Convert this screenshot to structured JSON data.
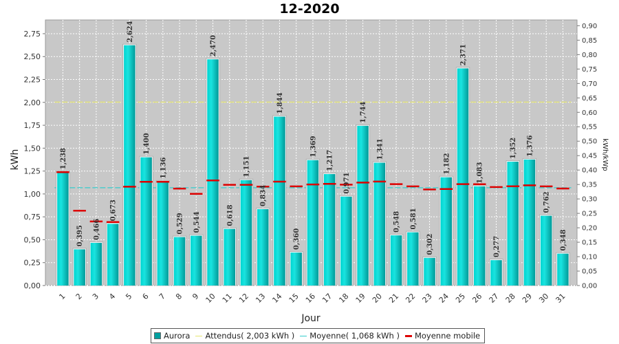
{
  "chart_data": {
    "type": "bar",
    "title": "12-2020",
    "xlabel": "Jour",
    "ylabel": "kWh",
    "y2label": "kWh/kWp",
    "ylim": [
      0,
      2.9
    ],
    "y2lim": [
      0,
      0.92
    ],
    "yticks": [
      "0,00",
      "0,25",
      "0,50",
      "0,75",
      "1,00",
      "1,25",
      "1,50",
      "1,75",
      "2,00",
      "2,25",
      "2,50",
      "2,75"
    ],
    "y2ticks": [
      "0,00",
      "0,05",
      "0,10",
      "0,15",
      "0,20",
      "0,25",
      "0,30",
      "0,35",
      "0,40",
      "0,45",
      "0,50",
      "0,55",
      "0,60",
      "0,65",
      "0,70",
      "0,75",
      "0,80",
      "0,85",
      "0,90"
    ],
    "categories": [
      "1",
      "2",
      "3",
      "4",
      "5",
      "6",
      "7",
      "8",
      "9",
      "10",
      "11",
      "12",
      "13",
      "14",
      "15",
      "16",
      "17",
      "18",
      "19",
      "20",
      "21",
      "22",
      "23",
      "24",
      "25",
      "26",
      "27",
      "28",
      "29",
      "30",
      "31"
    ],
    "series": [
      {
        "name": "Aurora",
        "values": [
          1.238,
          0.395,
          0.466,
          0.673,
          2.624,
          1.4,
          1.136,
          0.529,
          0.544,
          2.47,
          0.618,
          1.151,
          0.834,
          1.844,
          0.36,
          1.369,
          1.217,
          0.971,
          1.744,
          1.341,
          0.548,
          0.581,
          0.302,
          1.182,
          2.371,
          1.083,
          0.277,
          1.352,
          1.376,
          0.762,
          0.348
        ],
        "labels": [
          "1,238",
          "0,395",
          "0,466",
          "0,673",
          "2,624",
          "1,400",
          "1,136",
          "0,529",
          "0,544",
          "2,470",
          "0,618",
          "1,151",
          "0,834",
          "1,844",
          "0,360",
          "1,369",
          "1,217",
          "0,971",
          "1,744",
          "1,341",
          "0,548",
          "0,581",
          "0,302",
          "1,182",
          "2,371",
          "1,083",
          "0,277",
          "1,352",
          "1,376",
          "0,762",
          "0,348"
        ],
        "color": "#00b4b4"
      },
      {
        "name": "Attendus( 2,003 kWh )",
        "value": 2.003,
        "color": "#e6e66e"
      },
      {
        "name": "Moyenne( 1,068 kWh )",
        "value": 1.068,
        "color": "#33cccc"
      },
      {
        "name": "Moyenne mobile",
        "values": [
          1.238,
          0.817,
          0.7,
          0.693,
          1.079,
          1.133,
          1.133,
          1.058,
          1.001,
          1.148,
          1.1,
          1.1,
          1.08,
          1.134,
          1.083,
          1.103,
          1.11,
          1.102,
          1.124,
          1.135,
          1.107,
          1.083,
          1.049,
          1.054,
          1.107,
          1.106,
          1.075,
          1.084,
          1.094,
          1.083,
          1.059
        ],
        "color": "#dd0000"
      }
    ],
    "grid": true,
    "legend": "bottom"
  }
}
